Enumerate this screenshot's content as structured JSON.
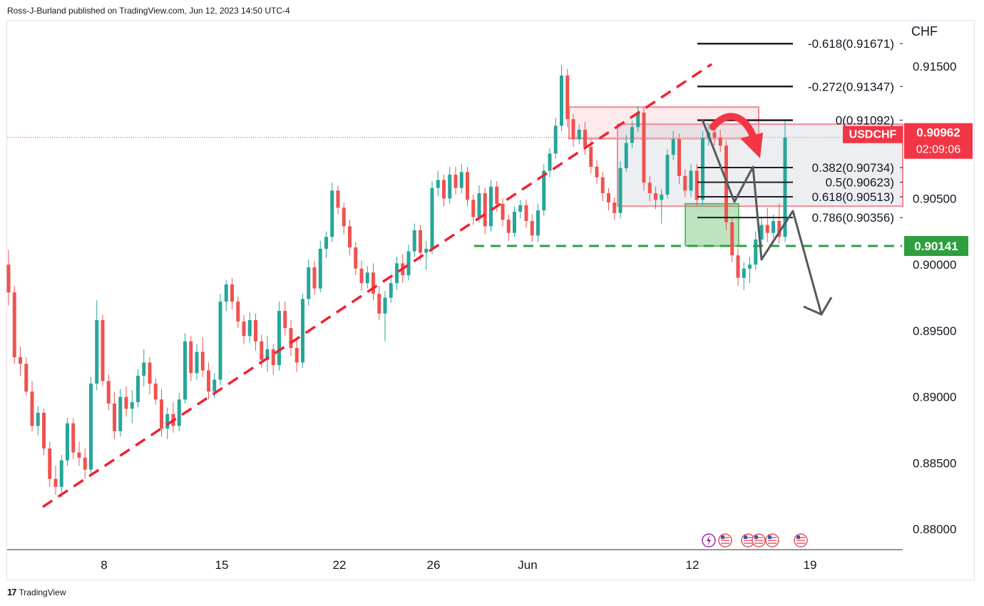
{
  "header": {
    "byline": "Ross-J-Burland published on TradingView.com, Jun 12, 2023 14:50 UTC-4"
  },
  "footer": {
    "brand": "TradingView"
  },
  "colors": {
    "up": "#26a69a",
    "down": "#ef5350",
    "trend": "#ee2233",
    "support": "#2f9e44",
    "zone_red": "#f08a96",
    "zone_green": "#43b04a",
    "projection": "#555a5e",
    "fib": "#1f1f1f",
    "price_tag": "#f23645",
    "support_tag": "#2e9e3e"
  },
  "chart_data": {
    "type": "candlestick",
    "symbol": "USDCHF",
    "currency_label": "CHF",
    "current_price": "0.90962",
    "countdown": "02:09:06",
    "support_level_label": "0.90141",
    "y_ticks": [
      "0.91500",
      "0.91000",
      "0.90500",
      "0.90000",
      "0.89500",
      "0.89000",
      "0.88500",
      "0.88000"
    ],
    "y_tick_values": [
      0.915,
      0.91,
      0.905,
      0.9,
      0.895,
      0.89,
      0.885,
      0.88
    ],
    "x_ticks": [
      {
        "label": "8",
        "x_index": 16
      },
      {
        "label": "15",
        "x_index": 36
      },
      {
        "label": "22",
        "x_index": 56
      },
      {
        "label": "26",
        "x_index": 72
      },
      {
        "label": "Jun",
        "x_index": 88
      },
      {
        "label": "12",
        "x_index": 116
      },
      {
        "label": "19",
        "x_index": 136
      }
    ],
    "ylim": [
      0.8785,
      0.9185
    ],
    "bar_count_visible": 152,
    "fibonacci": [
      {
        "label": "-0.618(0.91671)",
        "value": 0.91671
      },
      {
        "label": "-0.272(0.91347)",
        "value": 0.91347
      },
      {
        "label": "0(0.91092)",
        "value": 0.91092
      },
      {
        "label": "0.382(0.90734)",
        "value": 0.90734
      },
      {
        "label": "0.5(0.90623)",
        "value": 0.90623
      },
      {
        "label": "0.618(0.90513)",
        "value": 0.90513
      },
      {
        "label": "0.786(0.90356)",
        "value": 0.90356
      }
    ],
    "support_value": 0.90141,
    "current_value": 0.90962,
    "ohlc": [
      [
        0.9,
        0.9011,
        0.8969,
        0.8979
      ],
      [
        0.8979,
        0.8984,
        0.8925,
        0.893
      ],
      [
        0.893,
        0.8938,
        0.8916,
        0.8925
      ],
      [
        0.8925,
        0.893,
        0.8901,
        0.8904
      ],
      [
        0.8904,
        0.8912,
        0.8874,
        0.8878
      ],
      [
        0.8878,
        0.8893,
        0.8871,
        0.8888
      ],
      [
        0.8888,
        0.8891,
        0.8856,
        0.8861
      ],
      [
        0.8861,
        0.8866,
        0.8832,
        0.8838
      ],
      [
        0.8838,
        0.8848,
        0.8826,
        0.8832
      ],
      [
        0.8832,
        0.8856,
        0.8824,
        0.8852
      ],
      [
        0.8852,
        0.8884,
        0.8848,
        0.888
      ],
      [
        0.888,
        0.8884,
        0.8853,
        0.8858
      ],
      [
        0.8858,
        0.8866,
        0.8848,
        0.8854
      ],
      [
        0.8854,
        0.8861,
        0.8838,
        0.8845
      ],
      [
        0.8845,
        0.8915,
        0.8842,
        0.891
      ],
      [
        0.891,
        0.8973,
        0.8905,
        0.8958
      ],
      [
        0.8958,
        0.8962,
        0.8908,
        0.8912
      ],
      [
        0.8912,
        0.8917,
        0.889,
        0.8895
      ],
      [
        0.8895,
        0.8904,
        0.8868,
        0.8874
      ],
      [
        0.8874,
        0.8906,
        0.887,
        0.89
      ],
      [
        0.89,
        0.8908,
        0.8885,
        0.8891
      ],
      [
        0.8891,
        0.8905,
        0.888,
        0.8896
      ],
      [
        0.8896,
        0.8921,
        0.8892,
        0.8916
      ],
      [
        0.8916,
        0.8936,
        0.8908,
        0.8926
      ],
      [
        0.8926,
        0.893,
        0.8902,
        0.891
      ],
      [
        0.891,
        0.8914,
        0.8894,
        0.8898
      ],
      [
        0.8898,
        0.8906,
        0.887,
        0.8876
      ],
      [
        0.8876,
        0.8892,
        0.8868,
        0.8887
      ],
      [
        0.8887,
        0.8896,
        0.8873,
        0.8878
      ],
      [
        0.8878,
        0.8903,
        0.8874,
        0.8898
      ],
      [
        0.8898,
        0.8948,
        0.8895,
        0.8942
      ],
      [
        0.8942,
        0.8946,
        0.8912,
        0.8918
      ],
      [
        0.8918,
        0.894,
        0.8913,
        0.8934
      ],
      [
        0.8934,
        0.8945,
        0.8915,
        0.892
      ],
      [
        0.892,
        0.8926,
        0.8898,
        0.8904
      ],
      [
        0.8904,
        0.8918,
        0.8899,
        0.8913
      ],
      [
        0.8913,
        0.8978,
        0.8909,
        0.8972
      ],
      [
        0.8972,
        0.8988,
        0.8965,
        0.8985
      ],
      [
        0.8985,
        0.899,
        0.8966,
        0.8972
      ],
      [
        0.8972,
        0.8976,
        0.8952,
        0.8957
      ],
      [
        0.8957,
        0.8962,
        0.894,
        0.8946
      ],
      [
        0.8946,
        0.8964,
        0.8941,
        0.8958
      ],
      [
        0.8958,
        0.8963,
        0.8935,
        0.8942
      ],
      [
        0.8942,
        0.8947,
        0.8922,
        0.8928
      ],
      [
        0.8928,
        0.8946,
        0.8919,
        0.8936
      ],
      [
        0.8936,
        0.894,
        0.8917,
        0.8924
      ],
      [
        0.8924,
        0.8972,
        0.892,
        0.8965
      ],
      [
        0.8965,
        0.8972,
        0.8946,
        0.8952
      ],
      [
        0.8952,
        0.8958,
        0.8931,
        0.8937
      ],
      [
        0.8937,
        0.8944,
        0.8919,
        0.8926
      ],
      [
        0.8926,
        0.8978,
        0.8922,
        0.8974
      ],
      [
        0.8974,
        0.9004,
        0.8969,
        0.8998
      ],
      [
        0.8998,
        0.9003,
        0.8977,
        0.8982
      ],
      [
        0.8982,
        0.9018,
        0.8979,
        0.9012
      ],
      [
        0.9012,
        0.9025,
        0.9005,
        0.9021
      ],
      [
        0.9021,
        0.9062,
        0.9017,
        0.9056
      ],
      [
        0.9056,
        0.906,
        0.9038,
        0.9043
      ],
      [
        0.9043,
        0.9047,
        0.9023,
        0.9029
      ],
      [
        0.9029,
        0.9034,
        0.9007,
        0.9013
      ],
      [
        0.9013,
        0.9017,
        0.8992,
        0.8997
      ],
      [
        0.8997,
        0.9003,
        0.898,
        0.8986
      ],
      [
        0.8986,
        0.8999,
        0.8982,
        0.8994
      ],
      [
        0.8994,
        0.9001,
        0.8973,
        0.8978
      ],
      [
        0.8978,
        0.8984,
        0.8958,
        0.8963
      ],
      [
        0.8963,
        0.898,
        0.8942,
        0.8975
      ],
      [
        0.8975,
        0.8991,
        0.8971,
        0.8986
      ],
      [
        0.8986,
        0.9006,
        0.8981,
        0.9001
      ],
      [
        0.9001,
        0.9008,
        0.8986,
        0.8992
      ],
      [
        0.8992,
        0.9015,
        0.8988,
        0.901
      ],
      [
        0.901,
        0.9031,
        0.9006,
        0.9026
      ],
      [
        0.9026,
        0.903,
        0.9003,
        0.9009
      ],
      [
        0.9009,
        0.9018,
        0.8996,
        0.9012
      ],
      [
        0.9012,
        0.9063,
        0.9008,
        0.9058
      ],
      [
        0.9058,
        0.9071,
        0.9052,
        0.9064
      ],
      [
        0.9064,
        0.9068,
        0.9044,
        0.905
      ],
      [
        0.905,
        0.9074,
        0.9046,
        0.9068
      ],
      [
        0.9068,
        0.9074,
        0.9053,
        0.9058
      ],
      [
        0.9058,
        0.9076,
        0.9054,
        0.907
      ],
      [
        0.907,
        0.9074,
        0.9044,
        0.9049
      ],
      [
        0.9049,
        0.9053,
        0.903,
        0.9036
      ],
      [
        0.9036,
        0.906,
        0.9032,
        0.9054
      ],
      [
        0.9054,
        0.9058,
        0.9023,
        0.9029
      ],
      [
        0.9029,
        0.9064,
        0.9025,
        0.9059
      ],
      [
        0.9059,
        0.9063,
        0.904,
        0.9046
      ],
      [
        0.9046,
        0.905,
        0.9029,
        0.9034
      ],
      [
        0.9034,
        0.9038,
        0.9018,
        0.9024
      ],
      [
        0.9024,
        0.9044,
        0.9021,
        0.904
      ],
      [
        0.904,
        0.9049,
        0.9035,
        0.9045
      ],
      [
        0.9045,
        0.9049,
        0.9028,
        0.9033
      ],
      [
        0.9033,
        0.9038,
        0.9017,
        0.9022
      ],
      [
        0.9022,
        0.9046,
        0.9017,
        0.9041
      ],
      [
        0.9041,
        0.9076,
        0.9037,
        0.9071
      ],
      [
        0.9071,
        0.9088,
        0.9066,
        0.9084
      ],
      [
        0.9084,
        0.9111,
        0.908,
        0.9105
      ],
      [
        0.9105,
        0.9151,
        0.9101,
        0.9143
      ],
      [
        0.9143,
        0.9148,
        0.9104,
        0.911
      ],
      [
        0.911,
        0.9114,
        0.9089,
        0.9095
      ],
      [
        0.9095,
        0.9106,
        0.9091,
        0.9102
      ],
      [
        0.9102,
        0.9108,
        0.9083,
        0.9089
      ],
      [
        0.9089,
        0.9095,
        0.9069,
        0.9074
      ],
      [
        0.9074,
        0.9079,
        0.9061,
        0.9066
      ],
      [
        0.9066,
        0.907,
        0.9048,
        0.9054
      ],
      [
        0.9054,
        0.9058,
        0.9041,
        0.9047
      ],
      [
        0.9047,
        0.9051,
        0.9034,
        0.9039
      ],
      [
        0.9039,
        0.9078,
        0.9035,
        0.9073
      ],
      [
        0.9073,
        0.9098,
        0.907,
        0.9092
      ],
      [
        0.9092,
        0.9109,
        0.9088,
        0.9104
      ],
      [
        0.9104,
        0.912,
        0.91,
        0.9115
      ],
      [
        0.9115,
        0.912,
        0.9056,
        0.9062
      ],
      [
        0.9062,
        0.9067,
        0.9048,
        0.9054
      ],
      [
        0.9054,
        0.9059,
        0.9042,
        0.9049
      ],
      [
        0.9049,
        0.9057,
        0.9031,
        0.9053
      ],
      [
        0.9053,
        0.9087,
        0.905,
        0.9083
      ],
      [
        0.9083,
        0.9101,
        0.9079,
        0.9095
      ],
      [
        0.9095,
        0.9099,
        0.9061,
        0.9067
      ],
      [
        0.9067,
        0.9072,
        0.9051,
        0.9056
      ],
      [
        0.9056,
        0.9076,
        0.9051,
        0.9071
      ],
      [
        0.9071,
        0.9076,
        0.9044,
        0.9049
      ],
      [
        0.9049,
        0.9101,
        0.9045,
        0.9096
      ],
      [
        0.9096,
        0.9106,
        0.909,
        0.91
      ],
      [
        0.91,
        0.9106,
        0.909,
        0.9096
      ],
      [
        0.9096,
        0.9102,
        0.9085,
        0.909
      ],
      [
        0.909,
        0.9094,
        0.9026,
        0.9032
      ],
      [
        0.9032,
        0.9036,
        0.9002,
        0.9007
      ],
      [
        0.9007,
        0.9012,
        0.8984,
        0.899
      ],
      [
        0.899,
        0.9002,
        0.8981,
        0.8997
      ],
      [
        0.8997,
        0.9006,
        0.8986,
        0.9
      ],
      [
        0.9,
        0.9025,
        0.8996,
        0.9019
      ],
      [
        0.9019,
        0.9036,
        0.9014,
        0.903
      ],
      [
        0.903,
        0.9043,
        0.9017,
        0.9024
      ],
      [
        0.9024,
        0.9038,
        0.902,
        0.9033
      ],
      [
        0.9033,
        0.9046,
        0.9016,
        0.9021
      ],
      [
        0.9021,
        0.9109,
        0.9017,
        0.9096
      ]
    ]
  },
  "events_row": [
    "lightning-icon",
    "us-flag-icon",
    "us-flag-icon",
    "us-flag-icon",
    "us-flag-icon",
    "us-flag-icon"
  ]
}
